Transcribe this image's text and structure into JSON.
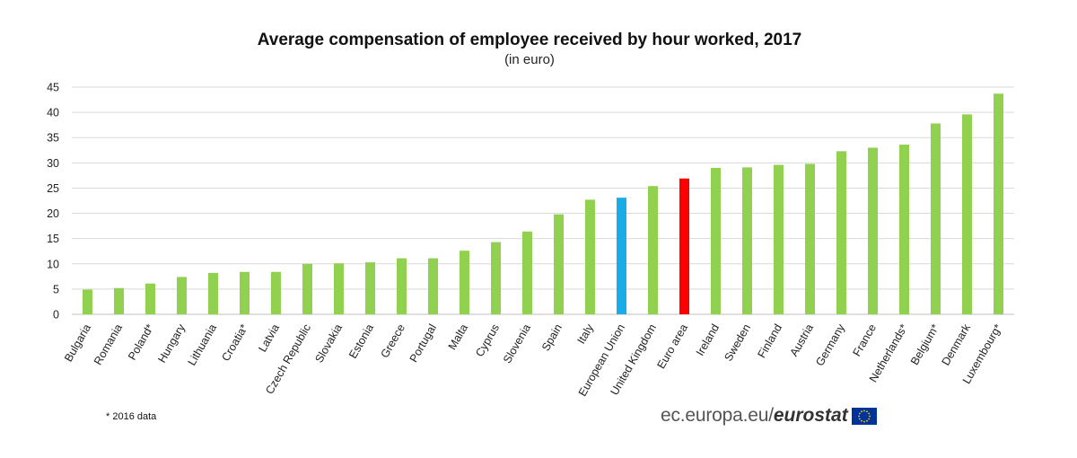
{
  "chart_data": {
    "type": "bar",
    "title": "Average compensation of employee received by hour worked, 2017",
    "subtitle": "(in euro)",
    "xlabel": "",
    "ylabel": "",
    "ylim": [
      0,
      45
    ],
    "yticks": [
      0,
      5,
      10,
      15,
      20,
      25,
      30,
      35,
      40,
      45
    ],
    "grid": true,
    "categories": [
      "Bulgaria",
      "Romania",
      "Poland*",
      "Hungary",
      "Lithuania",
      "Croatia*",
      "Latvia",
      "Czech Republic",
      "Slovakia",
      "Estonia",
      "Greece",
      "Portugal",
      "Malta",
      "Cyprus",
      "Slovenia",
      "Spain",
      "Italy",
      "European Union",
      "United Kingdom",
      "Euro area",
      "Ireland",
      "Sweden",
      "Finland",
      "Austria",
      "Germany",
      "France",
      "Netherlands*",
      "Belgium*",
      "Denmark",
      "Luxembourg*"
    ],
    "values": [
      4.9,
      5.2,
      6.1,
      7.4,
      8.2,
      8.4,
      8.4,
      10.0,
      10.1,
      10.3,
      11.1,
      11.1,
      12.6,
      14.3,
      16.4,
      19.8,
      22.7,
      23.1,
      25.4,
      26.9,
      29.0,
      29.1,
      29.6,
      29.8,
      32.3,
      33.0,
      33.6,
      37.8,
      39.6,
      43.7
    ],
    "colors": {
      "default": "#92d050",
      "European Union": "#1aace7",
      "Euro area": "#ff0000"
    }
  },
  "footnote": "* 2016 data",
  "source": {
    "text": "ec.europa.eu/",
    "brand": "eurostat",
    "logo_icon": "eu-flag-icon"
  }
}
